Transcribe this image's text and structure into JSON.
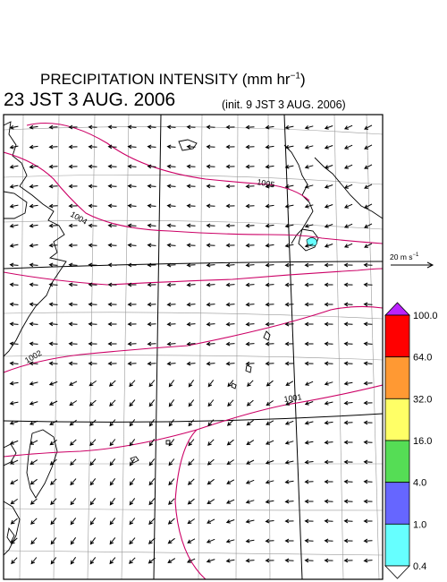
{
  "title": {
    "text": "PRECIPITATION INTENSITY (mm hr",
    "unit_exp": "−1",
    "close": ")"
  },
  "datetime": "23 JST 3 AUG. 2006",
  "init": "(init. 9 JST 3 AUG. 2006)",
  "reference_vector": {
    "label": "20 m s",
    "label_exp": "−1"
  },
  "colorbar": {
    "ticks": [
      "100.0",
      "64.0",
      "32.0",
      "16.0",
      "4.0",
      "1.0",
      "0.4"
    ],
    "colors": [
      "#ff0000",
      "#ff9933",
      "#ffff66",
      "#55dd55",
      "#6666ff",
      "#66ffff"
    ],
    "over_color": "#bb22ff",
    "under_color": "#ffffff"
  },
  "isobars": [
    {
      "label": "1004"
    },
    {
      "label": "1005"
    },
    {
      "label": "1002"
    },
    {
      "label": "1001"
    }
  ],
  "colors": {
    "isobar": "#cc0066",
    "coast": "#000000",
    "grid": "#999999",
    "wind": "#000000",
    "rain_patch": "#66ffff"
  }
}
